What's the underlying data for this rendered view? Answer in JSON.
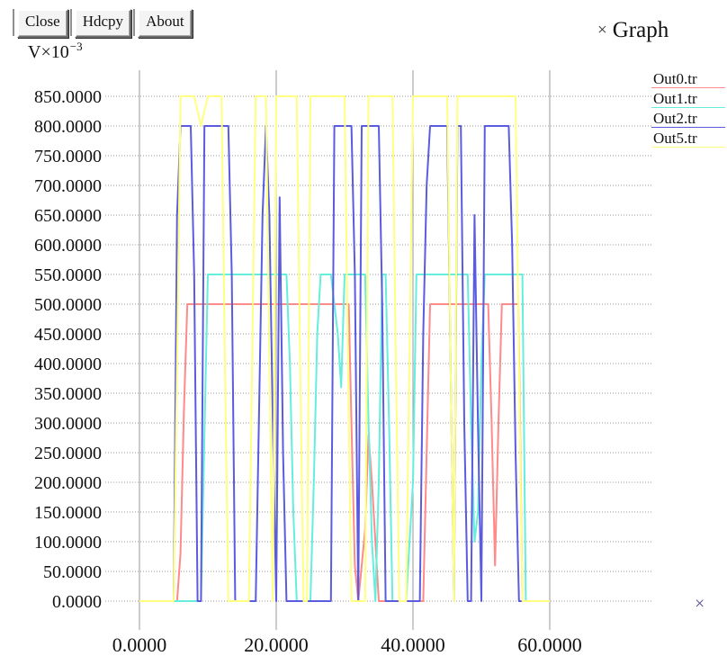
{
  "toolbar": {
    "close_label": "Close",
    "hdcpy_label": "Hdcpy",
    "about_label": "About"
  },
  "window": {
    "title": "Graph",
    "close_glyph": "×"
  },
  "axis_unit": {
    "base": "V×10",
    "exponent": "−3"
  },
  "corner_close_glyph": "×",
  "colors": {
    "out0": "#ff8a8a",
    "out1": "#66eedd",
    "out2": "#5b5be0",
    "out5": "#ffff80",
    "grid": "#9a9a9a"
  },
  "chart_data": {
    "type": "line",
    "title": "",
    "xlabel": "",
    "ylabel": "V×10−3",
    "xlim": [
      -5,
      75
    ],
    "ylim": [
      0,
      850
    ],
    "grid": true,
    "legend_position": "top-right",
    "x_ticks": [
      "0.0000",
      "20.0000",
      "40.0000",
      "60.0000"
    ],
    "y_ticks": [
      "0.0000",
      "50.0000",
      "100.0000",
      "150.0000",
      "200.0000",
      "250.0000",
      "300.0000",
      "350.0000",
      "400.0000",
      "450.0000",
      "500.0000",
      "550.0000",
      "600.0000",
      "650.0000",
      "700.0000",
      "750.0000",
      "800.0000",
      "850.0000"
    ],
    "series": [
      {
        "name": "Out0.tr",
        "color": "#ff8a8a",
        "points": [
          [
            0,
            0
          ],
          [
            5.5,
            0
          ],
          [
            6,
            80
          ],
          [
            6.5,
            320
          ],
          [
            7,
            500
          ],
          [
            10,
            500
          ],
          [
            20,
            500
          ],
          [
            30,
            500
          ],
          [
            30.6,
            500
          ],
          [
            31,
            300
          ],
          [
            31.5,
            60
          ],
          [
            32,
            0
          ],
          [
            33,
            120
          ],
          [
            33.5,
            280
          ],
          [
            34,
            200
          ],
          [
            35,
            0
          ],
          [
            40,
            0
          ],
          [
            41.5,
            0
          ],
          [
            42,
            250
          ],
          [
            42.5,
            500
          ],
          [
            50,
            500
          ],
          [
            51,
            500
          ],
          [
            51.5,
            300
          ],
          [
            52,
            60
          ],
          [
            52.5,
            300
          ],
          [
            53,
            500
          ],
          [
            55.4,
            500
          ],
          [
            55.6,
            350
          ],
          [
            56,
            0
          ],
          [
            60,
            0
          ]
        ]
      },
      {
        "name": "Out1.tr",
        "color": "#66eedd",
        "points": [
          [
            0,
            0
          ],
          [
            9,
            0
          ],
          [
            9.5,
            280
          ],
          [
            10,
            550
          ],
          [
            20,
            550
          ],
          [
            21.5,
            550
          ],
          [
            22,
            400
          ],
          [
            22.5,
            150
          ],
          [
            23,
            0
          ],
          [
            25,
            0
          ],
          [
            25.5,
            200
          ],
          [
            26,
            450
          ],
          [
            26.5,
            550
          ],
          [
            28,
            550
          ],
          [
            29,
            450
          ],
          [
            29.5,
            360
          ],
          [
            30,
            550
          ],
          [
            33,
            550
          ],
          [
            33.5,
            300
          ],
          [
            34,
            100
          ],
          [
            34.5,
            0
          ],
          [
            35,
            200
          ],
          [
            35.5,
            550
          ],
          [
            36,
            550
          ],
          [
            36.5,
            300
          ],
          [
            37,
            0
          ],
          [
            38,
            0
          ],
          [
            39,
            0
          ],
          [
            40,
            200
          ],
          [
            40.5,
            550
          ],
          [
            43,
            550
          ],
          [
            48,
            550
          ],
          [
            48.5,
            300
          ],
          [
            49,
            100
          ],
          [
            49.5,
            150
          ],
          [
            50,
            400
          ],
          [
            50.5,
            550
          ],
          [
            56,
            550
          ],
          [
            56.5,
            0
          ],
          [
            60,
            0
          ]
        ]
      },
      {
        "name": "Out2.tr",
        "color": "#5b5be0",
        "points": [
          [
            0,
            0
          ],
          [
            5,
            0
          ],
          [
            5.5,
            650
          ],
          [
            6,
            800
          ],
          [
            7.5,
            800
          ],
          [
            8,
            550
          ],
          [
            8.5,
            0
          ],
          [
            9,
            0
          ],
          [
            9.5,
            800
          ],
          [
            10,
            800
          ],
          [
            13,
            800
          ],
          [
            13.5,
            550
          ],
          [
            14,
            0
          ],
          [
            17,
            0
          ],
          [
            18,
            650
          ],
          [
            18.5,
            800
          ],
          [
            19,
            650
          ],
          [
            19.5,
            300
          ],
          [
            20,
            0
          ],
          [
            20.5,
            680
          ],
          [
            21,
            250
          ],
          [
            21.5,
            0
          ],
          [
            23,
            0
          ],
          [
            28,
            0
          ],
          [
            28.5,
            800
          ],
          [
            31,
            800
          ],
          [
            31.5,
            550
          ],
          [
            32,
            0
          ],
          [
            32.5,
            800
          ],
          [
            35,
            800
          ],
          [
            35.5,
            500
          ],
          [
            36,
            0
          ],
          [
            41,
            0
          ],
          [
            41.5,
            450
          ],
          [
            42,
            700
          ],
          [
            42.5,
            800
          ],
          [
            45,
            800
          ],
          [
            45.5,
            400
          ],
          [
            46,
            0
          ],
          [
            46.5,
            800
          ],
          [
            47,
            800
          ],
          [
            47.5,
            300
          ],
          [
            48,
            0
          ],
          [
            48.5,
            0
          ],
          [
            49,
            650
          ],
          [
            49.5,
            300
          ],
          [
            50,
            0
          ],
          [
            50.5,
            800
          ],
          [
            54,
            800
          ],
          [
            54.5,
            600
          ],
          [
            55,
            250
          ],
          [
            55.5,
            0
          ],
          [
            60,
            0
          ]
        ]
      },
      {
        "name": "Out5.tr",
        "color": "#ffff80",
        "points": [
          [
            0,
            0
          ],
          [
            5,
            0
          ],
          [
            5.5,
            400
          ],
          [
            6,
            850
          ],
          [
            7,
            850
          ],
          [
            8,
            850
          ],
          [
            9,
            800
          ],
          [
            10,
            850
          ],
          [
            11,
            850
          ],
          [
            12,
            850
          ],
          [
            12.5,
            400
          ],
          [
            13,
            0
          ],
          [
            16,
            0
          ],
          [
            17,
            850
          ],
          [
            18.5,
            850
          ],
          [
            19,
            400
          ],
          [
            19.5,
            0
          ],
          [
            20,
            850
          ],
          [
            23,
            850
          ],
          [
            23.5,
            400
          ],
          [
            24,
            0
          ],
          [
            24.5,
            0
          ],
          [
            25,
            850
          ],
          [
            27,
            850
          ],
          [
            28,
            850
          ],
          [
            30,
            850
          ],
          [
            30.5,
            400
          ],
          [
            31,
            0
          ],
          [
            33,
            0
          ],
          [
            33.5,
            850
          ],
          [
            37,
            850
          ],
          [
            37.5,
            400
          ],
          [
            38,
            0
          ],
          [
            39,
            0
          ],
          [
            40,
            850
          ],
          [
            45,
            850
          ],
          [
            45.5,
            400
          ],
          [
            46,
            0
          ],
          [
            46.5,
            850
          ],
          [
            51,
            850
          ],
          [
            54,
            850
          ],
          [
            55,
            850
          ],
          [
            55.5,
            400
          ],
          [
            56,
            0
          ],
          [
            60,
            0
          ]
        ]
      }
    ]
  }
}
